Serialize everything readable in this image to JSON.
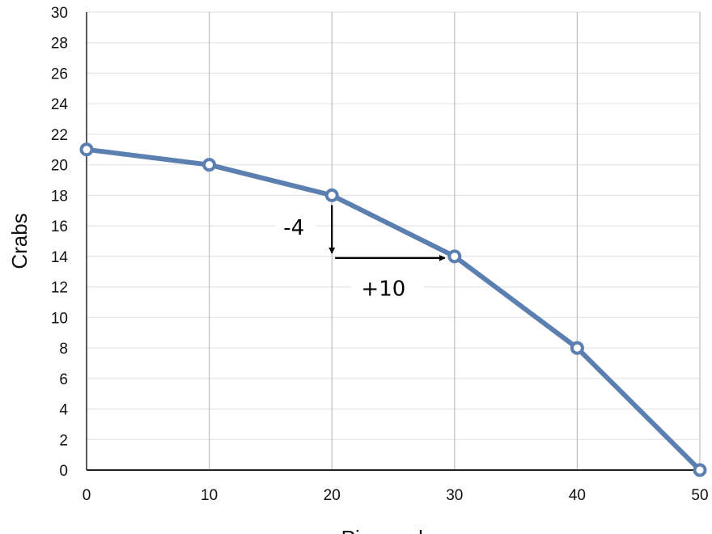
{
  "chart_data": {
    "type": "line",
    "xlabel": "Pineapples",
    "ylabel": "Crabs",
    "xlim": [
      0,
      50
    ],
    "ylim": [
      0,
      30
    ],
    "xticks": [
      0,
      10,
      20,
      30,
      40,
      50
    ],
    "yticks": [
      0,
      2,
      4,
      6,
      8,
      10,
      12,
      14,
      16,
      18,
      20,
      22,
      24,
      26,
      28,
      30
    ],
    "grid": true,
    "series": [
      {
        "x": [
          0,
          10,
          20,
          30,
          40,
          50
        ],
        "y": [
          21,
          20,
          18,
          14,
          8,
          0
        ],
        "color": "#5b7fb0"
      }
    ],
    "annotations": [
      {
        "text": "-4",
        "type": "arrow-down",
        "from": [
          20,
          18
        ],
        "to": [
          20,
          14
        ]
      },
      {
        "text": "+10",
        "type": "arrow-right",
        "from": [
          20,
          14
        ],
        "to": [
          30,
          14
        ]
      }
    ]
  }
}
